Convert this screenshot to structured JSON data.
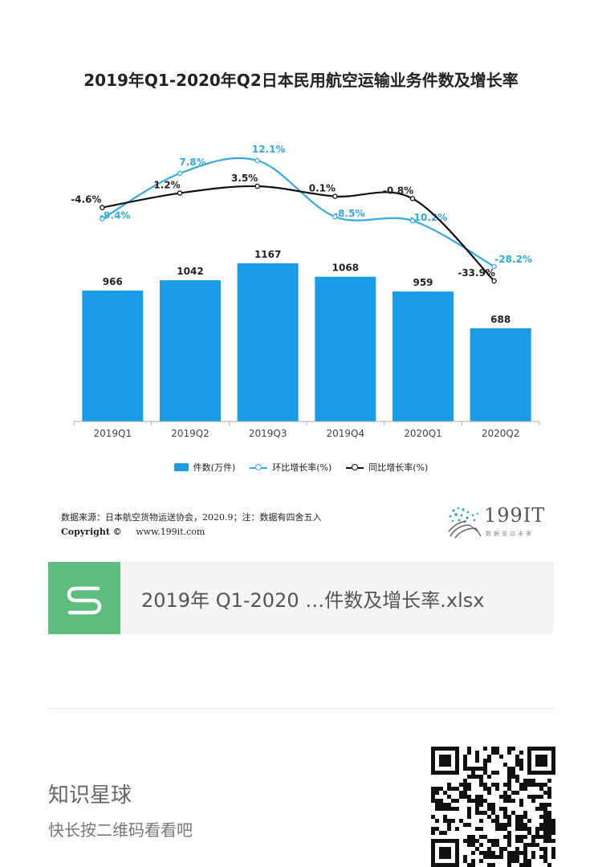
{
  "chart_data": {
    "type": "bar",
    "title": "2019年Q1-2020年Q2日本民用航空运输业务件数及增长率",
    "categories": [
      "2019Q1",
      "2019Q2",
      "2019Q3",
      "2019Q4",
      "2020Q1",
      "2020Q2"
    ],
    "series": [
      {
        "name": "件数(万件)",
        "type": "bar",
        "values": [
          966,
          1042,
          1167,
          1068,
          959,
          688
        ],
        "labels": [
          "966",
          "1042",
          "1167",
          "1068",
          "959",
          "688"
        ]
      },
      {
        "name": "环比增长率(%)",
        "type": "line",
        "values": [
          -9.4,
          7.8,
          12.1,
          -8.5,
          -10.2,
          -28.2
        ],
        "labels": [
          "-9.4%",
          "7.8%",
          "12.1%",
          "-8.5%",
          "-10.2%",
          "-28.2%"
        ]
      },
      {
        "name": "同比增长率(%)",
        "type": "line",
        "values": [
          -4.6,
          1.2,
          3.5,
          0.1,
          -0.8,
          -33.9
        ],
        "labels": [
          "-4.6%",
          "1.2%",
          "3.5%",
          "0.1%",
          "-0.8%",
          "-33.9%"
        ]
      }
    ],
    "legend_position": "bottom",
    "grid": false
  },
  "colors": {
    "bar": "#1a9be6",
    "qoq": "#35a8e0",
    "yoy": "#111111"
  },
  "footer": {
    "source": "数据来源：日本航空货物运送协会，2020.9；注：数据有四舍五入",
    "copyright": "Copyright ©",
    "website": "www.199it.com",
    "brand": "199IT",
    "brand_sub": "数据驱动未来"
  },
  "file": {
    "icon": "spreadsheet-icon",
    "name": "2019年 Q1-2020 …件数及增长率.xlsx"
  },
  "planet": {
    "title": "知识星球",
    "subtitle": "快长按二维码看看吧"
  }
}
